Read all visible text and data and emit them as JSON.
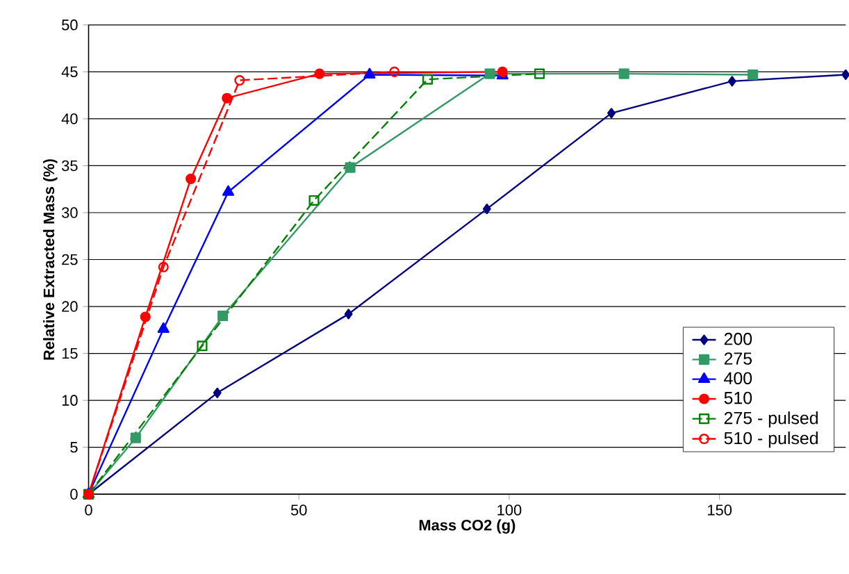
{
  "chart_data": {
    "type": "line",
    "xlabel": "Mass CO2 (g)",
    "ylabel": "Relative Extracted Mass (%)",
    "xlim": [
      0,
      180
    ],
    "ylim": [
      0,
      50
    ],
    "xticks": [
      0,
      50,
      100,
      150
    ],
    "yticks": [
      0,
      5,
      10,
      15,
      20,
      25,
      30,
      35,
      40,
      45,
      50
    ],
    "grid": "y",
    "legend": "bottom right",
    "series": [
      {
        "name": "200",
        "color": "#000080",
        "marker": "diamond",
        "line_style": "solid",
        "x": [
          0,
          30.6,
          61.8,
          94.7,
          124.3,
          153.0,
          180
        ],
        "values": [
          0,
          10.8,
          19.2,
          30.4,
          40.6,
          44.0,
          44.7
        ]
      },
      {
        "name": "275",
        "color": "#339966",
        "marker": "square",
        "line_style": "solid",
        "x": [
          0,
          11.2,
          31.9,
          62.2,
          95.4,
          127.3,
          157.9
        ],
        "values": [
          0,
          6.0,
          19.0,
          34.8,
          44.8,
          44.8,
          44.7
        ]
      },
      {
        "name": "400",
        "color": "#0000ff",
        "marker": "triangle",
        "line_style": "solid",
        "x": [
          0,
          17.8,
          33.2,
          66.8,
          98.4
        ],
        "values": [
          0,
          17.6,
          32.2,
          44.7,
          44.6
        ]
      },
      {
        "name": "510",
        "color": "#ff0000",
        "marker": "circle",
        "line_style": "solid",
        "x": [
          0,
          13.5,
          24.3,
          32.9,
          54.9,
          98.4
        ],
        "values": [
          0,
          18.9,
          33.6,
          42.2,
          44.8,
          45.0
        ]
      },
      {
        "name": "275 - pulsed",
        "color": "#008000",
        "marker": "square",
        "line_style": "dashed",
        "x": [
          0,
          27.0,
          53.6,
          80.6,
          107.2
        ],
        "values": [
          0,
          15.8,
          31.3,
          44.2,
          44.8
        ]
      },
      {
        "name": "510 - pulsed",
        "color": "#ff0000",
        "marker": "circle",
        "line_style": "dashed",
        "x": [
          0,
          17.8,
          35.9,
          72.7
        ],
        "values": [
          0,
          24.2,
          44.1,
          45.0
        ]
      }
    ]
  }
}
